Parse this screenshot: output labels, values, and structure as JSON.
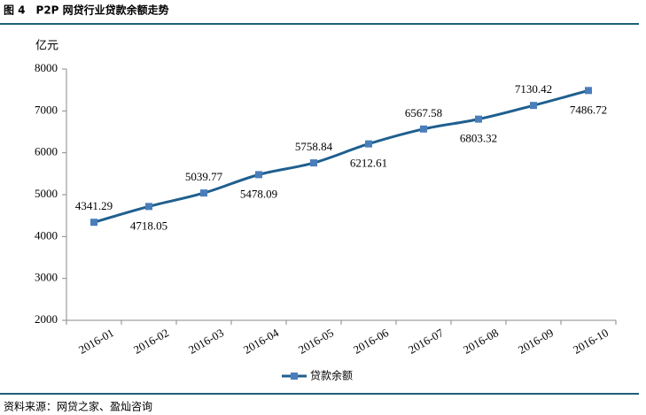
{
  "title": "图 4　P2P 网贷行业贷款余额走势",
  "source": "资料来源：网贷之家、盈灿咨询",
  "chart_data": {
    "type": "line",
    "y_label": "亿元",
    "categories": [
      "2016-01",
      "2016-02",
      "2016-03",
      "2016-04",
      "2016-05",
      "2016-06",
      "2016-07",
      "2016-08",
      "2016-09",
      "2016-10"
    ],
    "series": [
      {
        "name": "贷款余额",
        "color": "#1f5f8f",
        "marker_color": "#4a7ebb",
        "values": [
          4341.29,
          4718.05,
          5039.77,
          5478.09,
          5758.84,
          6212.61,
          6567.58,
          6803.32,
          7130.42,
          7486.72
        ]
      }
    ],
    "ylim": [
      2000,
      8000
    ],
    "yticks": [
      2000,
      3000,
      4000,
      5000,
      6000,
      7000,
      8000
    ],
    "legend": "bottom"
  }
}
